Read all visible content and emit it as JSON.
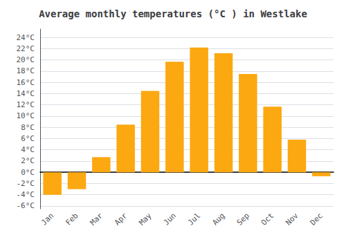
{
  "chart_data": {
    "type": "bar",
    "title": "Average monthly temperatures (°C ) in Westlake",
    "categories": [
      "Jan",
      "Feb",
      "Mar",
      "Apr",
      "May",
      "Jun",
      "Jul",
      "Aug",
      "Sep",
      "Oct",
      "Nov",
      "Dec"
    ],
    "values": [
      -4.0,
      -3.0,
      2.7,
      8.5,
      14.5,
      19.7,
      22.2,
      21.2,
      17.5,
      11.7,
      5.8,
      -0.7
    ],
    "color": "#FCA811",
    "ylim": [
      -6.5,
      25.5
    ],
    "yticks": [
      {
        "value": -6,
        "label": "-6°C"
      },
      {
        "value": -4,
        "label": "-4°C"
      },
      {
        "value": -2,
        "label": "-2°C"
      },
      {
        "value": 0,
        "label": "0°C"
      },
      {
        "value": 2,
        "label": "2°C"
      },
      {
        "value": 4,
        "label": "4°C"
      },
      {
        "value": 6,
        "label": "6°C"
      },
      {
        "value": 8,
        "label": "8°C"
      },
      {
        "value": 10,
        "label": "10°C"
      },
      {
        "value": 12,
        "label": "12°C"
      },
      {
        "value": 14,
        "label": "14°C"
      },
      {
        "value": 16,
        "label": "16°C"
      },
      {
        "value": 18,
        "label": "18°C"
      },
      {
        "value": 20,
        "label": "20°C"
      },
      {
        "value": 22,
        "label": "22°C"
      },
      {
        "value": 24,
        "label": "24°C"
      }
    ],
    "grid": true
  }
}
